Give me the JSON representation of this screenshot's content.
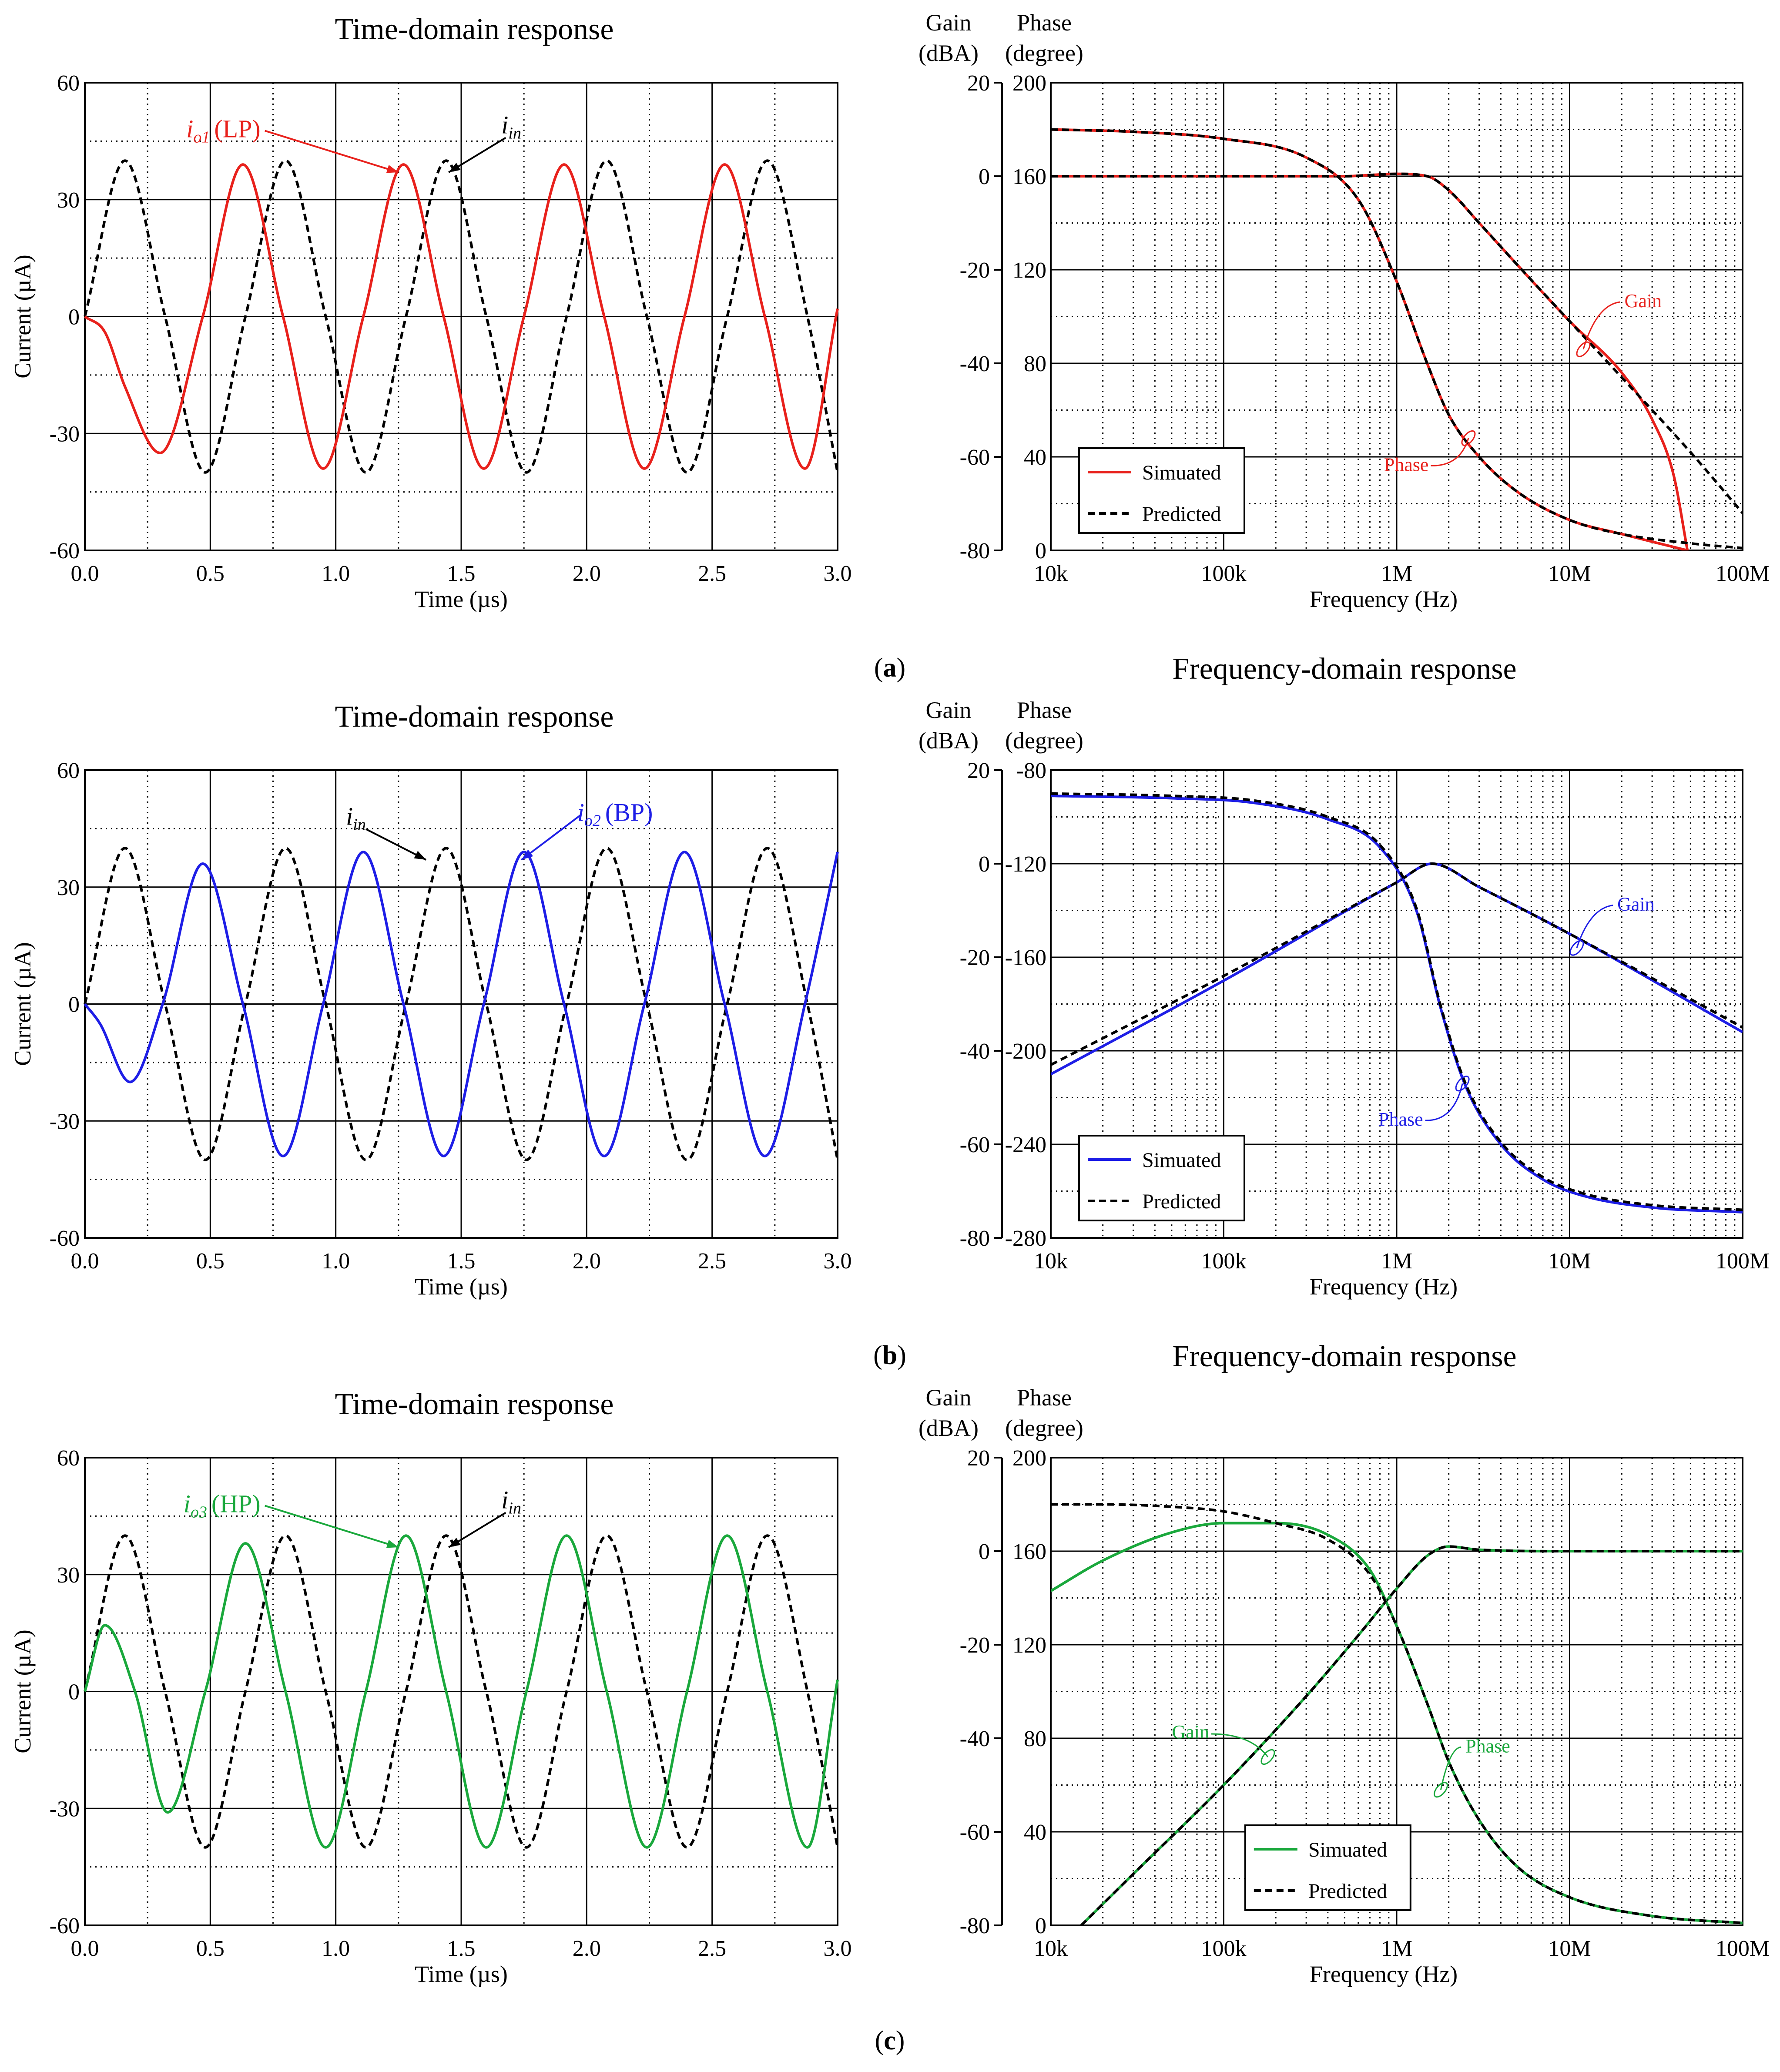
{
  "chart_data": [
    {
      "id": "a-time",
      "type": "line",
      "title": "Time-domain response",
      "xlabel": "Time (µs)",
      "ylabel": "Current (µA)",
      "xlim": [
        0,
        3.0
      ],
      "ylim": [
        -60,
        60
      ],
      "xticks": [
        "0.0",
        "0.5",
        "1.0",
        "1.5",
        "2.0",
        "2.5",
        "3.0"
      ],
      "yticks": [
        "60",
        "30",
        "0",
        "-30",
        "-60"
      ],
      "grid": true,
      "series": [
        {
          "name": "iin",
          "style": "dashed",
          "color": "#000000",
          "x": [
            0,
            0.16,
            0.32,
            0.48,
            0.64,
            0.8,
            0.96,
            1.12,
            1.28,
            1.44,
            1.6,
            1.76,
            1.92,
            2.08,
            2.24,
            2.4,
            2.56,
            2.72,
            2.88,
            3.0
          ],
          "y": [
            0,
            40,
            0,
            -40,
            0,
            40,
            0,
            -40,
            0,
            40,
            0,
            -40,
            0,
            40,
            0,
            -40,
            0,
            40,
            0,
            -40
          ]
        },
        {
          "name": "io1 (LP)",
          "style": "solid",
          "color": "#e8211c",
          "x": [
            0,
            0.08,
            0.16,
            0.3,
            0.47,
            0.63,
            0.79,
            0.95,
            1.11,
            1.27,
            1.43,
            1.59,
            1.75,
            1.91,
            2.07,
            2.23,
            2.39,
            2.55,
            2.71,
            2.87,
            3.0
          ],
          "y": [
            0,
            -4,
            -18,
            -35,
            0,
            39,
            0,
            -39,
            0,
            39,
            0,
            -39,
            0,
            39,
            0,
            -39,
            0,
            39,
            0,
            -39,
            2
          ]
        }
      ],
      "annotations": [
        {
          "text": "(LP)",
          "sub_main": "i",
          "sub_index": "o1",
          "color": "#e8211c"
        },
        {
          "text": "",
          "sub_main": "i",
          "sub_index": "in",
          "color": "#000000"
        }
      ]
    },
    {
      "id": "a-freq",
      "type": "line",
      "title": "Frequency-domain response",
      "xlabel": "Frequency (Hz)",
      "ylabel_left": "Gain (dBA)",
      "ylabel_right": "Phase (degree)",
      "ylabel_left_line1": "Gain",
      "ylabel_left_line2": "(dBA)",
      "ylabel_right_line1": "Phase",
      "ylabel_right_line2": "(degree)",
      "xscale": "log",
      "xlim": [
        10000,
        100000000
      ],
      "ylim_gain": [
        -80,
        20
      ],
      "ylim_phase": [
        0,
        200
      ],
      "xticks": [
        "10k",
        "100k",
        "1M",
        "10M",
        "100M"
      ],
      "yticks_gain": [
        "20",
        "0",
        "-20",
        "-40",
        "-60",
        "-80"
      ],
      "yticks_phase": [
        "200",
        "160",
        "120",
        "80",
        "40",
        "0"
      ],
      "grid": true,
      "legend": {
        "position": "bottom-left",
        "entries": [
          "Simuated",
          "Predicted"
        ]
      },
      "series": [
        {
          "name": "Gain simulated",
          "axis": "gain",
          "style": "solid",
          "color": "#e8211c",
          "x": [
            10000,
            100000,
            500000,
            1000000,
            1500000,
            2000000,
            3000000,
            5000000,
            10000000,
            20000000,
            30000000,
            40000000,
            48000000
          ],
          "y": [
            0,
            0,
            0,
            0.5,
            0,
            -3,
            -10,
            -19,
            -31,
            -42,
            -52,
            -64,
            -80
          ]
        },
        {
          "name": "Gain predicted",
          "axis": "gain",
          "style": "dashed",
          "color": "#000000",
          "x": [
            10000,
            100000,
            500000,
            1000000,
            1500000,
            2000000,
            3000000,
            5000000,
            10000000,
            20000000,
            50000000,
            100000000
          ],
          "y": [
            0,
            0,
            0,
            0.5,
            0,
            -3,
            -10,
            -19,
            -31,
            -43,
            -59,
            -72
          ]
        },
        {
          "name": "Phase simulated",
          "axis": "phase",
          "style": "solid",
          "color": "#e8211c",
          "x": [
            10000,
            30000,
            100000,
            300000,
            600000,
            1000000,
            1500000,
            2000000,
            3000000,
            5000000,
            10000000,
            20000000,
            48000000
          ],
          "y": [
            180,
            179,
            176,
            168,
            150,
            115,
            80,
            58,
            40,
            25,
            13,
            7,
            0
          ]
        },
        {
          "name": "Phase predicted",
          "axis": "phase",
          "style": "dashed",
          "color": "#000000",
          "x": [
            10000,
            30000,
            100000,
            300000,
            600000,
            1000000,
            1500000,
            2000000,
            3000000,
            5000000,
            10000000,
            20000000,
            50000000,
            100000000
          ],
          "y": [
            180,
            179,
            176,
            168,
            150,
            115,
            80,
            58,
            40,
            25,
            13,
            7,
            3,
            1
          ]
        }
      ],
      "annotations": [
        {
          "text": "Gain",
          "color": "#e8211c"
        },
        {
          "text": "Phase",
          "color": "#e8211c"
        }
      ]
    },
    {
      "id": "b-time",
      "type": "line",
      "title": "Time-domain response",
      "xlabel": "Time (µs)",
      "ylabel": "Current (µA)",
      "xlim": [
        0,
        3.0
      ],
      "ylim": [
        -60,
        60
      ],
      "xticks": [
        "0.0",
        "0.5",
        "1.0",
        "1.5",
        "2.0",
        "2.5",
        "3.0"
      ],
      "yticks": [
        "60",
        "30",
        "0",
        "-30",
        "-60"
      ],
      "grid": true,
      "series": [
        {
          "name": "iin",
          "style": "dashed",
          "color": "#000000",
          "x": [
            0,
            0.16,
            0.32,
            0.48,
            0.64,
            0.8,
            0.96,
            1.12,
            1.28,
            1.44,
            1.6,
            1.76,
            1.92,
            2.08,
            2.24,
            2.4,
            2.56,
            2.72,
            2.88,
            3.0
          ],
          "y": [
            0,
            40,
            0,
            -40,
            0,
            40,
            0,
            -40,
            0,
            40,
            0,
            -40,
            0,
            40,
            0,
            -40,
            0,
            40,
            0,
            -40
          ]
        },
        {
          "name": "io2 (BP)",
          "style": "solid",
          "color": "#1e1ee6",
          "x": [
            0,
            0.06,
            0.18,
            0.31,
            0.47,
            0.63,
            0.79,
            0.95,
            1.11,
            1.27,
            1.43,
            1.59,
            1.75,
            1.91,
            2.07,
            2.23,
            2.39,
            2.55,
            2.71,
            2.87,
            3.0
          ],
          "y": [
            0,
            -5,
            -20,
            0,
            36,
            0,
            -39,
            0,
            39,
            0,
            -39,
            0,
            39,
            0,
            -39,
            0,
            39,
            0,
            -39,
            0,
            39
          ]
        }
      ],
      "annotations": [
        {
          "text": "(BP)",
          "sub_main": "i",
          "sub_index": "o2",
          "color": "#1e1ee6"
        },
        {
          "text": "",
          "sub_main": "i",
          "sub_index": "in",
          "color": "#000000"
        }
      ]
    },
    {
      "id": "b-freq",
      "type": "line",
      "title": "Frequency-domain response",
      "xlabel": "Frequency (Hz)",
      "ylabel_left": "Gain (dBA)",
      "ylabel_right": "Phase (degree)",
      "ylabel_left_line1": "Gain",
      "ylabel_left_line2": "(dBA)",
      "ylabel_right_line1": "Phase",
      "ylabel_right_line2": "(degree)",
      "xscale": "log",
      "xlim": [
        10000,
        100000000
      ],
      "ylim_gain": [
        -80,
        20
      ],
      "ylim_phase": [
        -280,
        -80
      ],
      "xticks": [
        "10k",
        "100k",
        "1M",
        "10M",
        "100M"
      ],
      "yticks_gain": [
        "20",
        "0",
        "-20",
        "-40",
        "-60",
        "-80"
      ],
      "yticks_phase": [
        "-80",
        "-120",
        "-160",
        "-200",
        "-240",
        "-280"
      ],
      "grid": true,
      "legend": {
        "position": "bottom-left",
        "entries": [
          "Simuated",
          "Predicted"
        ]
      },
      "series": [
        {
          "name": "Gain simulated",
          "axis": "gain",
          "style": "solid",
          "color": "#1e1ee6",
          "x": [
            10000,
            100000,
            1000000,
            1600000,
            3000000,
            10000000,
            100000000
          ],
          "y": [
            -45,
            -25,
            -4,
            0,
            -5,
            -15,
            -36
          ]
        },
        {
          "name": "Gain predicted",
          "axis": "gain",
          "style": "dashed",
          "color": "#000000",
          "x": [
            10000,
            100000,
            1000000,
            1600000,
            3000000,
            10000000,
            100000000
          ],
          "y": [
            -43,
            -24,
            -4,
            0,
            -5,
            -15,
            -35
          ]
        },
        {
          "name": "Phase simulated",
          "axis": "phase",
          "style": "solid",
          "color": "#1e1ee6",
          "x": [
            10000,
            50000,
            150000,
            400000,
            800000,
            1300000,
            1800000,
            2500000,
            4000000,
            7000000,
            12000000,
            30000000,
            100000000
          ],
          "y": [
            -91,
            -92,
            -94,
            -101,
            -113,
            -140,
            -182,
            -215,
            -240,
            -255,
            -262,
            -267,
            -269
          ]
        },
        {
          "name": "Phase predicted",
          "axis": "phase",
          "style": "dashed",
          "color": "#000000",
          "x": [
            10000,
            50000,
            150000,
            400000,
            800000,
            1300000,
            1800000,
            2500000,
            4000000,
            7000000,
            12000000,
            30000000,
            100000000
          ],
          "y": [
            -90,
            -91,
            -93,
            -100,
            -112,
            -139,
            -181,
            -214,
            -239,
            -254,
            -261,
            -266,
            -268
          ]
        }
      ],
      "annotations": [
        {
          "text": "Gain",
          "color": "#1e1ee6"
        },
        {
          "text": "Phase",
          "color": "#1e1ee6"
        }
      ]
    },
    {
      "id": "c-time",
      "type": "line",
      "title": "Time-domain response",
      "xlabel": "Time (µs)",
      "ylabel": "Current (µA)",
      "xlim": [
        0,
        3.0
      ],
      "ylim": [
        -60,
        60
      ],
      "xticks": [
        "0.0",
        "0.5",
        "1.0",
        "1.5",
        "2.0",
        "2.5",
        "3.0"
      ],
      "yticks": [
        "60",
        "30",
        "0",
        "-30",
        "-60"
      ],
      "grid": true,
      "series": [
        {
          "name": "iin",
          "style": "dashed",
          "color": "#000000",
          "x": [
            0,
            0.16,
            0.32,
            0.48,
            0.64,
            0.8,
            0.96,
            1.12,
            1.28,
            1.44,
            1.6,
            1.76,
            1.92,
            2.08,
            2.24,
            2.4,
            2.56,
            2.72,
            2.88,
            3.0
          ],
          "y": [
            0,
            40,
            0,
            -40,
            0,
            40,
            0,
            -40,
            0,
            40,
            0,
            -40,
            0,
            40,
            0,
            -40,
            0,
            40,
            0,
            -40
          ]
        },
        {
          "name": "io3 (HP)",
          "style": "solid",
          "color": "#1aa83c",
          "x": [
            0,
            0.08,
            0.2,
            0.33,
            0.48,
            0.64,
            0.8,
            0.96,
            1.12,
            1.28,
            1.44,
            1.6,
            1.76,
            1.92,
            2.08,
            2.24,
            2.4,
            2.56,
            2.72,
            2.88,
            3.0
          ],
          "y": [
            0,
            17,
            0,
            -31,
            0,
            38,
            0,
            -40,
            0,
            40,
            0,
            -40,
            0,
            40,
            0,
            -40,
            0,
            40,
            0,
            -40,
            3
          ]
        }
      ],
      "annotations": [
        {
          "text": "(HP)",
          "sub_main": "i",
          "sub_index": "o3",
          "color": "#1aa83c"
        },
        {
          "text": "",
          "sub_main": "i",
          "sub_index": "in",
          "color": "#000000"
        }
      ]
    },
    {
      "id": "c-freq",
      "type": "line",
      "title": "Frequency-domain response",
      "xlabel": "Frequency (Hz)",
      "ylabel_left": "Gain (dBA)",
      "ylabel_right": "Phase (degree)",
      "ylabel_left_line1": "Gain",
      "ylabel_left_line2": "(dBA)",
      "ylabel_right_line1": "Phase",
      "ylabel_right_line2": "(degree)",
      "xscale": "log",
      "xlim": [
        10000,
        100000000
      ],
      "ylim_gain": [
        -80,
        20
      ],
      "ylim_phase": [
        0,
        200
      ],
      "xticks": [
        "10k",
        "100k",
        "1M",
        "10M",
        "100M"
      ],
      "yticks_gain": [
        "20",
        "0",
        "-20",
        "-40",
        "-60",
        "-80"
      ],
      "yticks_phase": [
        "200",
        "160",
        "120",
        "80",
        "40",
        "0"
      ],
      "grid": true,
      "legend": {
        "position": "bottom-center",
        "entries": [
          "Simuated",
          "Predicted"
        ]
      },
      "series": [
        {
          "name": "Gain simulated",
          "axis": "gain",
          "style": "solid",
          "color": "#1aa83c",
          "x": [
            15000,
            30000,
            100000,
            300000,
            600000,
            1000000,
            1500000,
            2000000,
            3000000,
            10000000,
            100000000
          ],
          "y": [
            -80,
            -69,
            -50,
            -31,
            -18,
            -8,
            -1,
            1,
            0.3,
            0,
            0
          ]
        },
        {
          "name": "Gain predicted",
          "axis": "gain",
          "style": "dashed",
          "color": "#000000",
          "x": [
            15000,
            30000,
            100000,
            300000,
            600000,
            1000000,
            1500000,
            2000000,
            3000000,
            10000000,
            100000000
          ],
          "y": [
            -80,
            -69,
            -50,
            -31,
            -18,
            -8,
            -1,
            1,
            0.3,
            0,
            0
          ]
        },
        {
          "name": "Phase simulated",
          "axis": "phase",
          "style": "solid",
          "color": "#1aa83c",
          "x": [
            10000,
            20000,
            50000,
            100000,
            200000,
            400000,
            700000,
            1000000,
            1500000,
            2000000,
            3000000,
            5000000,
            10000000,
            30000000,
            100000000
          ],
          "y": [
            143,
            156,
            168,
            172,
            172,
            167,
            152,
            128,
            95,
            70,
            45,
            25,
            12,
            4,
            1
          ]
        },
        {
          "name": "Phase predicted",
          "axis": "phase",
          "style": "dashed",
          "color": "#000000",
          "x": [
            10000,
            20000,
            50000,
            100000,
            200000,
            400000,
            700000,
            1000000,
            1500000,
            2000000,
            3000000,
            5000000,
            10000000,
            30000000,
            100000000
          ],
          "y": [
            180,
            180,
            179,
            177,
            172,
            165,
            150,
            128,
            95,
            70,
            45,
            25,
            12,
            4,
            1
          ]
        }
      ],
      "annotations": [
        {
          "text": "Gain",
          "color": "#1aa83c"
        },
        {
          "text": "Phase",
          "color": "#1aa83c"
        }
      ]
    }
  ],
  "panel_labels": [
    "(a)",
    "(b)",
    "(c)"
  ]
}
